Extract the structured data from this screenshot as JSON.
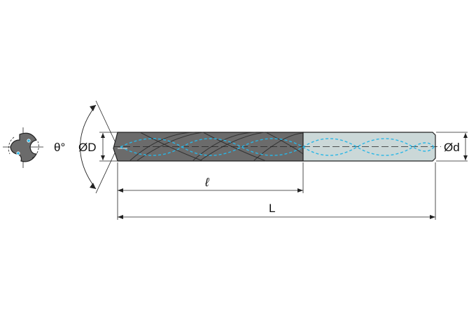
{
  "labels": {
    "point_angle": "θ°",
    "body_diameter": "ØD",
    "shank_diameter": "Ød",
    "flute_length": "ℓ",
    "overall_length": "L"
  },
  "colors": {
    "flute_body": "#6b6b6b",
    "shank": "#cbd8d8",
    "coolant_lines": "#29b6e6",
    "outline": "#222222"
  }
}
